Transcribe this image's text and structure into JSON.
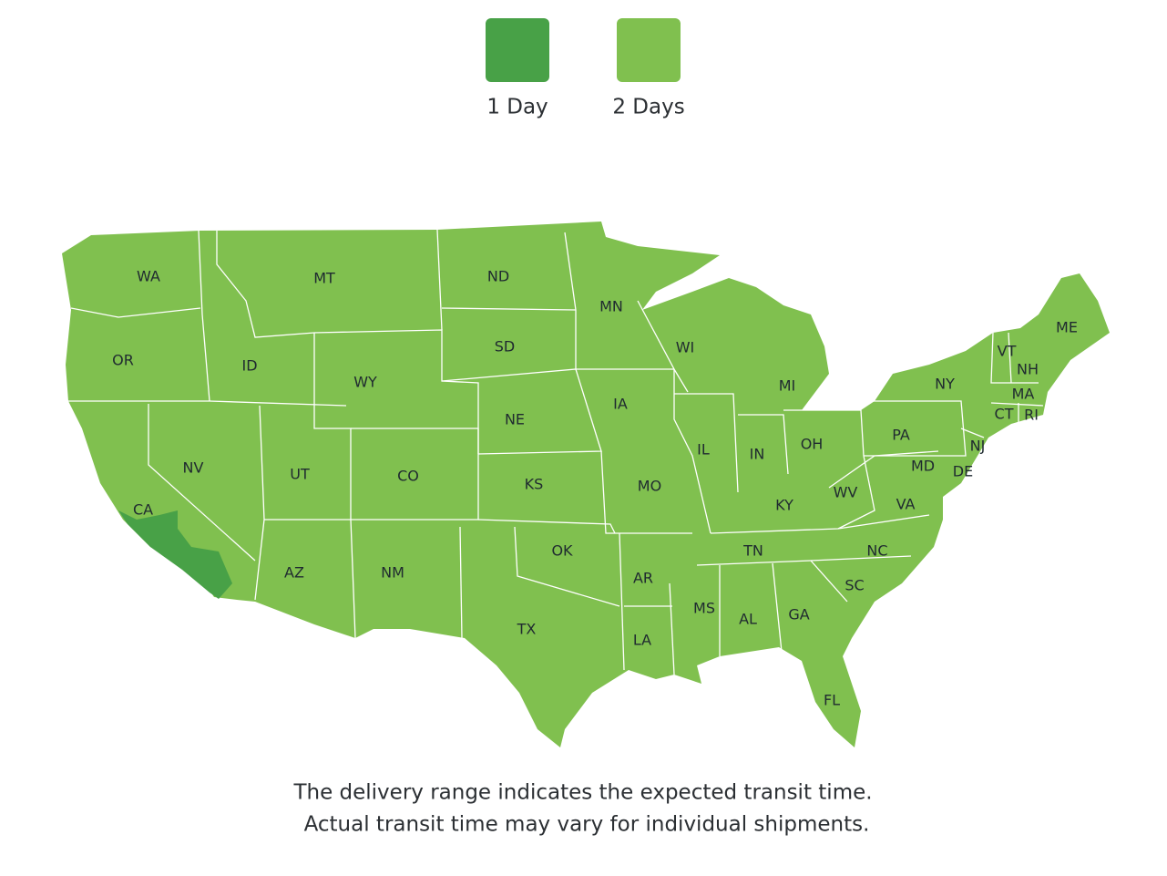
{
  "legend": [
    {
      "label": "1 Day",
      "color": "#48a147"
    },
    {
      "label": "2 Days",
      "color": "#80c04f"
    }
  ],
  "states": [
    "WA",
    "OR",
    "CA",
    "NV",
    "ID",
    "MT",
    "WY",
    "UT",
    "AZ",
    "CO",
    "NM",
    "ND",
    "SD",
    "NE",
    "KS",
    "OK",
    "TX",
    "MN",
    "IA",
    "MO",
    "AR",
    "LA",
    "WI",
    "IL",
    "MI",
    "IN",
    "OH",
    "KY",
    "TN",
    "MS",
    "AL",
    "GA",
    "FL",
    "SC",
    "NC",
    "VA",
    "WV",
    "MD",
    "DE",
    "PA",
    "NJ",
    "NY",
    "CT",
    "RI",
    "MA",
    "VT",
    "NH",
    "ME"
  ],
  "footer": [
    "The delivery range indicates the expected transit time.",
    "Actual transit time may vary for individual shipments."
  ]
}
